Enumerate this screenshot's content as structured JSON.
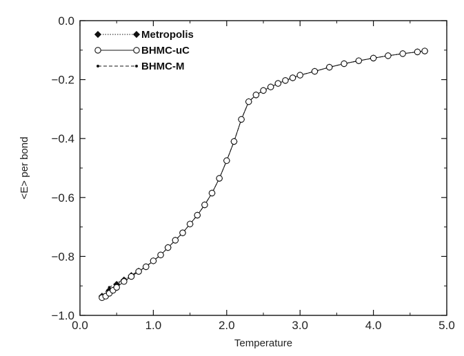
{
  "chart_data": {
    "type": "line",
    "xlabel": "Temperature",
    "ylabel": "<E> per bond",
    "xlim": [
      0.0,
      5.0
    ],
    "ylim": [
      -1.0,
      0.0
    ],
    "xticks": [
      "0.0",
      "1.0",
      "2.0",
      "3.0",
      "4.0",
      "5.0"
    ],
    "yticks": [
      "0.0",
      "−0.2",
      "−0.4",
      "−0.6",
      "−0.8",
      "−1.0"
    ],
    "grid": false,
    "legend_position": "top-left",
    "series": [
      {
        "name": "Metropolis",
        "marker": "diamond-filled",
        "line": "dotted",
        "x": [
          0.3,
          0.4,
          0.5,
          0.6,
          0.7,
          0.8,
          0.9,
          1.0,
          1.1,
          1.2,
          1.3,
          1.4,
          1.5,
          1.6,
          1.7,
          1.8,
          1.9,
          2.0,
          2.1,
          2.2,
          2.3,
          2.4,
          2.5,
          2.6,
          2.7,
          2.8,
          2.9,
          3.0,
          3.2,
          3.4,
          3.6,
          3.8,
          4.0,
          4.2,
          4.4,
          4.6,
          4.7
        ],
        "y": [
          -0.935,
          -0.915,
          -0.895,
          -0.88,
          -0.865,
          -0.85,
          -0.835,
          -0.815,
          -0.795,
          -0.77,
          -0.745,
          -0.72,
          -0.69,
          -0.66,
          -0.625,
          -0.585,
          -0.535,
          -0.475,
          -0.41,
          -0.335,
          -0.275,
          -0.252,
          -0.237,
          -0.225,
          -0.213,
          -0.203,
          -0.194,
          -0.185,
          -0.172,
          -0.158,
          -0.146,
          -0.136,
          -0.127,
          -0.119,
          -0.112,
          -0.106,
          -0.103
        ]
      },
      {
        "name": "BHMC-uC",
        "marker": "circle-open",
        "line": "solid",
        "x": [
          0.3,
          0.35,
          0.4,
          0.45,
          0.5,
          0.6,
          0.7,
          0.8,
          0.9,
          1.0,
          1.1,
          1.2,
          1.3,
          1.4,
          1.5,
          1.6,
          1.7,
          1.8,
          1.9,
          2.0,
          2.1,
          2.2,
          2.3,
          2.4,
          2.5,
          2.6,
          2.7,
          2.8,
          2.9,
          3.0,
          3.2,
          3.4,
          3.6,
          3.8,
          4.0,
          4.2,
          4.4,
          4.6,
          4.7
        ],
        "y": [
          -0.94,
          -0.935,
          -0.925,
          -0.915,
          -0.905,
          -0.885,
          -0.868,
          -0.851,
          -0.835,
          -0.815,
          -0.795,
          -0.77,
          -0.745,
          -0.72,
          -0.69,
          -0.66,
          -0.625,
          -0.585,
          -0.535,
          -0.475,
          -0.41,
          -0.335,
          -0.275,
          -0.252,
          -0.237,
          -0.225,
          -0.213,
          -0.203,
          -0.194,
          -0.185,
          -0.172,
          -0.158,
          -0.146,
          -0.136,
          -0.127,
          -0.119,
          -0.112,
          -0.106,
          -0.103
        ]
      },
      {
        "name": "BHMC-M",
        "marker": "dot",
        "line": "dashed",
        "x": [
          0.3,
          0.4,
          0.5,
          0.6,
          0.7,
          0.8,
          0.9,
          1.0,
          1.1,
          1.2,
          1.3,
          1.4,
          1.5,
          1.6,
          1.7,
          1.8,
          1.9,
          2.0,
          2.1,
          2.2,
          2.3,
          2.4,
          2.5,
          2.6,
          2.7,
          2.8,
          2.9,
          3.0,
          3.2,
          3.4,
          3.6,
          3.8,
          4.0,
          4.2,
          4.4,
          4.6,
          4.7
        ],
        "y": [
          -0.935,
          -0.905,
          -0.89,
          -0.878,
          -0.864,
          -0.849,
          -0.834,
          -0.815,
          -0.795,
          -0.77,
          -0.745,
          -0.72,
          -0.69,
          -0.66,
          -0.625,
          -0.585,
          -0.535,
          -0.475,
          -0.41,
          -0.335,
          -0.275,
          -0.252,
          -0.237,
          -0.225,
          -0.213,
          -0.203,
          -0.194,
          -0.185,
          -0.172,
          -0.158,
          -0.146,
          -0.136,
          -0.127,
          -0.119,
          -0.112,
          -0.106,
          -0.103
        ]
      }
    ]
  }
}
